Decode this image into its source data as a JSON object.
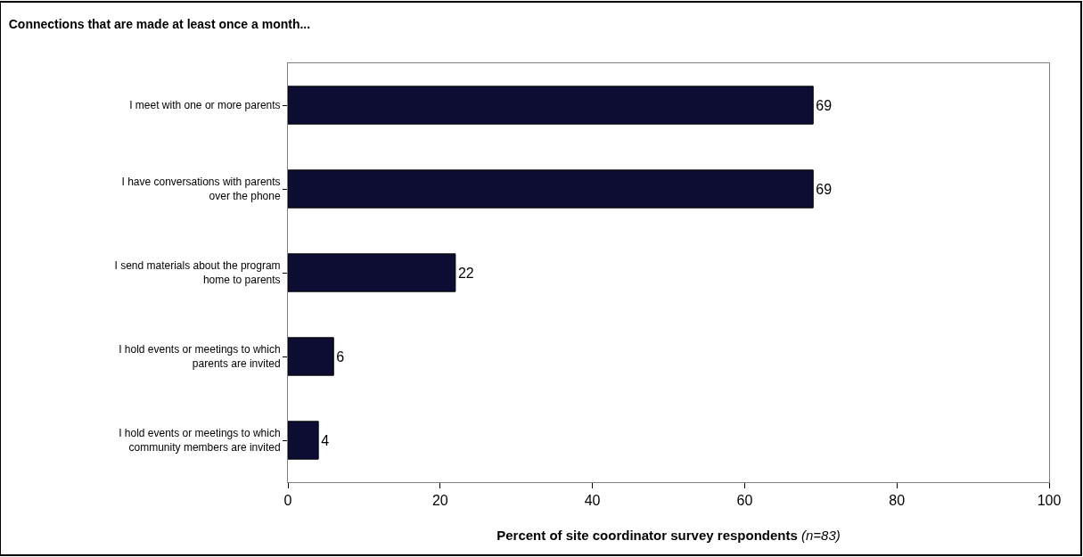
{
  "chart_data": {
    "type": "bar",
    "orientation": "horizontal",
    "title": "Connections that are made at least once a month...",
    "xlabel": "Percent of site coordinator survey respondents (n=83)",
    "categories": [
      "I meet with one or more parents",
      "I have conversations with parents over the phone",
      "I send materials about the program home to parents",
      "I hold events or meetings to which parents are invited",
      "I hold events or meetings to which community members are invited"
    ],
    "values": [
      69,
      69,
      22,
      6,
      4
    ],
    "color": "#0d0d33",
    "data_labels": true,
    "xlim": [
      0,
      100
    ],
    "xticks": [
      0,
      20,
      40,
      60,
      80,
      100
    ]
  }
}
